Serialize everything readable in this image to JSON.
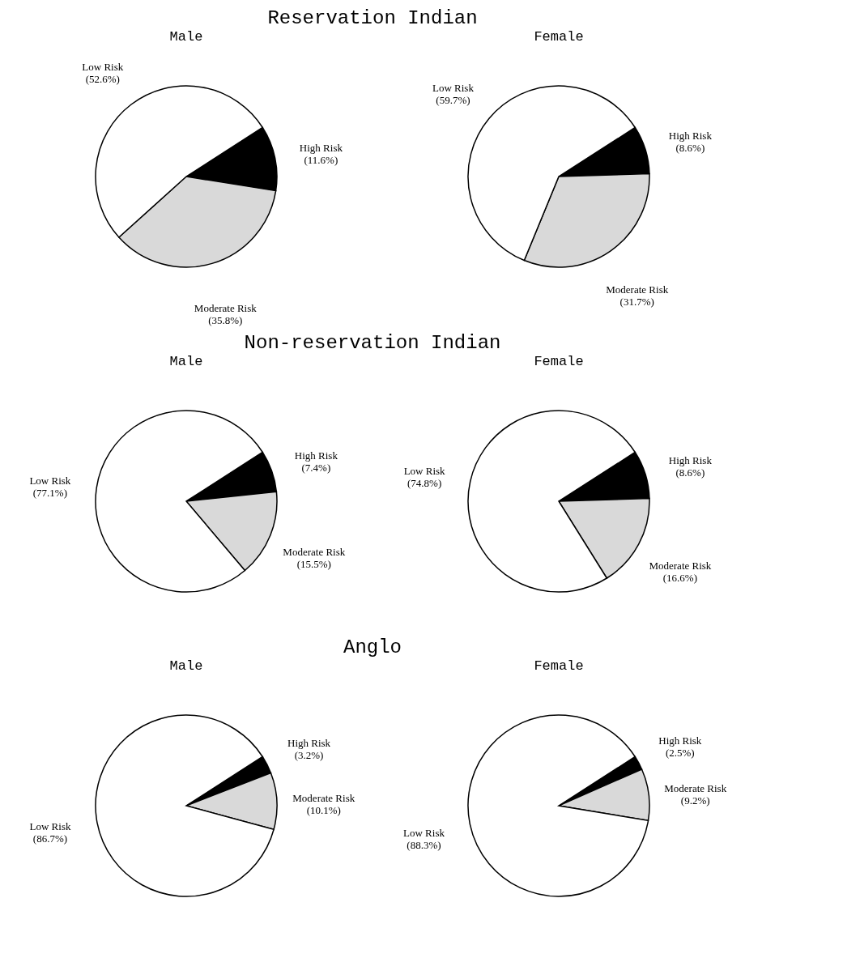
{
  "chart_data": [
    {
      "type": "pie",
      "title": "Male",
      "annotations": [
        "Reservation Indian"
      ],
      "categories": [
        "High Risk",
        "Moderate Risk",
        "Low Risk"
      ],
      "values": [
        11.6,
        35.8,
        52.6
      ],
      "value_labels": [
        "(11.6%)",
        "(35.8%)",
        "(52.6%)"
      ],
      "colors": [
        "#000000",
        "#d9d9d9",
        "#ffffff"
      ]
    },
    {
      "type": "pie",
      "title": "Female",
      "categories": [
        "High Risk",
        "Moderate Risk",
        "Low Risk"
      ],
      "values": [
        8.6,
        31.7,
        59.7
      ],
      "value_labels": [
        "(8.6%)",
        "(31.7%)",
        "(59.7%)"
      ],
      "colors": [
        "#000000",
        "#d9d9d9",
        "#ffffff"
      ]
    },
    {
      "type": "pie",
      "title": "Male",
      "annotations": [
        "Non-reservation Indian"
      ],
      "categories": [
        "High Risk",
        "Moderate Risk",
        "Low Risk"
      ],
      "values": [
        7.4,
        15.5,
        77.1
      ],
      "value_labels": [
        "(7.4%)",
        "(15.5%)",
        "(77.1%)"
      ],
      "colors": [
        "#000000",
        "#d9d9d9",
        "#ffffff"
      ]
    },
    {
      "type": "pie",
      "title": "Female",
      "categories": [
        "High Risk",
        "Moderate Risk",
        "Low Risk"
      ],
      "values": [
        8.6,
        16.6,
        74.8
      ],
      "value_labels": [
        "(8.6%)",
        "(16.6%)",
        "(74.8%)"
      ],
      "colors": [
        "#000000",
        "#d9d9d9",
        "#ffffff"
      ]
    },
    {
      "type": "pie",
      "title": "Male",
      "annotations": [
        "Anglo"
      ],
      "categories": [
        "High Risk",
        "Moderate Risk",
        "Low Risk"
      ],
      "values": [
        3.2,
        10.1,
        86.7
      ],
      "value_labels": [
        "(3.2%)",
        "(10.1%)",
        "(86.7%)"
      ],
      "colors": [
        "#000000",
        "#d9d9d9",
        "#ffffff"
      ]
    },
    {
      "type": "pie",
      "title": "Female",
      "categories": [
        "High Risk",
        "Moderate Risk",
        "Low Risk"
      ],
      "values": [
        2.5,
        9.2,
        88.3
      ],
      "value_labels": [
        "(2.5%)",
        "(9.2%)",
        "(88.3%)"
      ],
      "colors": [
        "#000000",
        "#d9d9d9",
        "#ffffff"
      ]
    }
  ]
}
